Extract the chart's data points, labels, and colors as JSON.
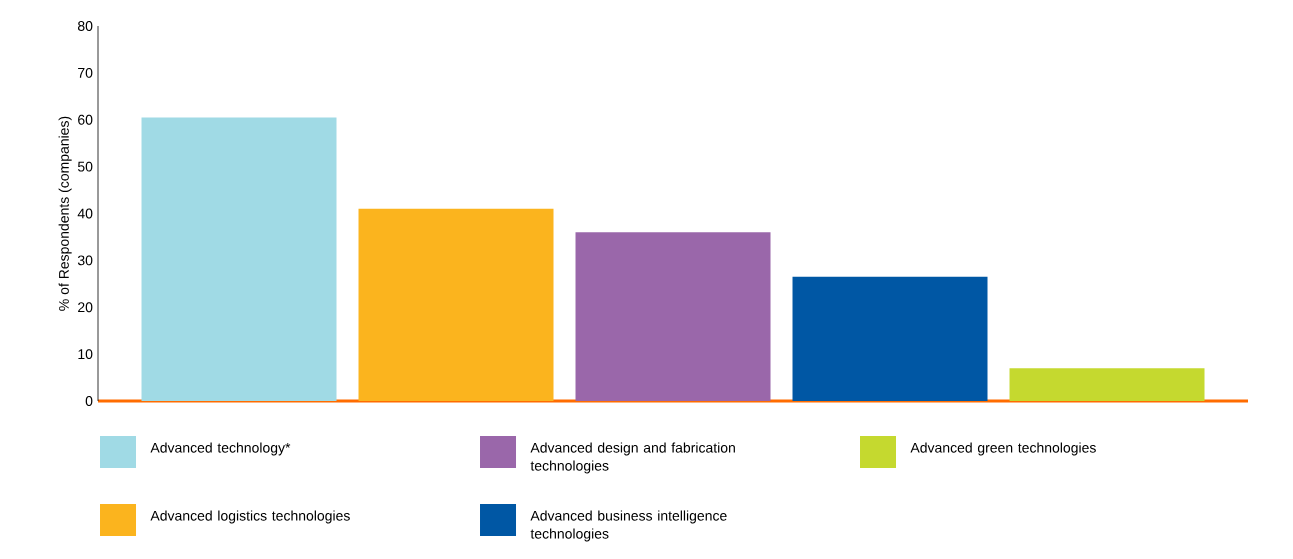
{
  "chart_data": {
    "type": "bar",
    "ylabel": "% of Respondents (companies)",
    "categories": [
      null
    ],
    "series": [
      {
        "name": "Advanced technology*",
        "color": "#a0dae5",
        "values": [
          60.5
        ]
      },
      {
        "name": "Advanced logistics technologies",
        "color": "#fbb41e",
        "values": [
          41
        ]
      },
      {
        "name": "Advanced design and fabrication technologies",
        "color": "#9a67aa",
        "values": [
          36
        ]
      },
      {
        "name": "Advanced business intelligence technologies",
        "color": "#0057a4",
        "values": [
          26.5
        ]
      },
      {
        "name": "Advanced green technologies",
        "color": "#c5d92f",
        "values": [
          7
        ]
      }
    ],
    "ylim": [
      0,
      80
    ],
    "yticks": [
      0,
      10,
      20,
      30,
      40,
      50,
      60,
      70,
      80
    ],
    "grid": false,
    "legend": "bottom"
  }
}
